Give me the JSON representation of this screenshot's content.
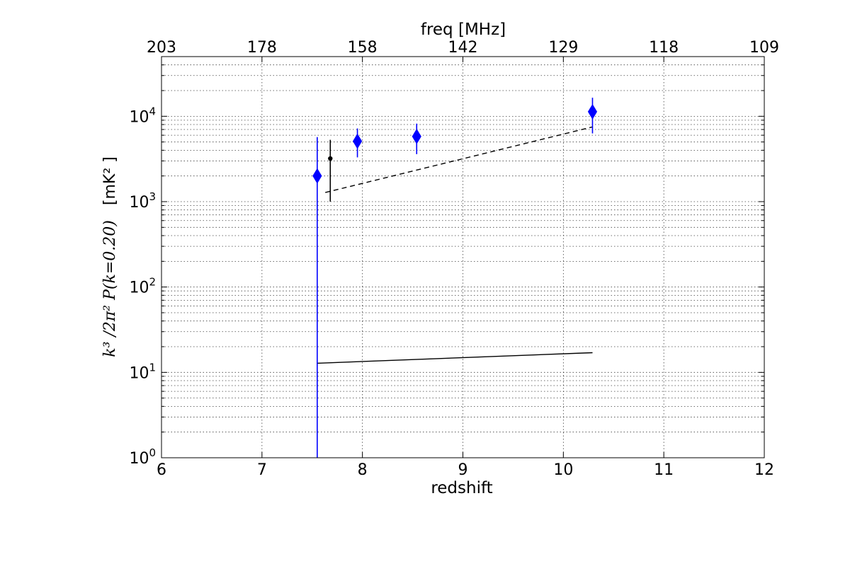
{
  "chart_data": {
    "type": "scatter",
    "xlabel": "redshift",
    "top_xlabel": "freq [MHz]",
    "ylabel_math": "k³ /2π² P(k=0.20)",
    "ylabel_unit": "[mK² ]",
    "xlim": [
      6,
      12
    ],
    "ylim": [
      1,
      50000
    ],
    "yscale": "log",
    "grid": true,
    "x_ticks": [
      "6",
      "7",
      "8",
      "9",
      "10",
      "11",
      "12"
    ],
    "top_ticks": [
      {
        "z": 6,
        "label": "203"
      },
      {
        "z": 7,
        "label": "178"
      },
      {
        "z": 8,
        "label": "158"
      },
      {
        "z": 9,
        "label": "142"
      },
      {
        "z": 10,
        "label": "129"
      },
      {
        "z": 11,
        "label": "118"
      },
      {
        "z": 12,
        "label": "109"
      }
    ],
    "y_ticks": [
      {
        "value": 1,
        "base": "10",
        "exp": "0"
      },
      {
        "value": 10,
        "base": "10",
        "exp": "1"
      },
      {
        "value": 100,
        "base": "10",
        "exp": "2"
      },
      {
        "value": 1000,
        "base": "10",
        "exp": "3"
      },
      {
        "value": 10000,
        "base": "10",
        "exp": "4"
      }
    ],
    "series": [
      {
        "marker": "diamond",
        "color": "#0000ff",
        "points": [
          {
            "x": 7.55,
            "y": 2000,
            "ylow": 1,
            "yhigh": 5700
          },
          {
            "x": 7.95,
            "y": 5100,
            "ylow": 3300,
            "yhigh": 7200
          },
          {
            "x": 8.54,
            "y": 5800,
            "ylow": 3600,
            "yhigh": 8200
          },
          {
            "x": 10.29,
            "y": 11300,
            "ylow": 6300,
            "yhigh": 16500
          }
        ]
      },
      {
        "marker": "dot",
        "color": "#000000",
        "points": [
          {
            "x": 7.68,
            "y": 3200,
            "ylow": 1000,
            "yhigh": 5300
          }
        ]
      }
    ],
    "lines": [
      {
        "style": "dashed",
        "color": "#000000",
        "points": [
          [
            7.63,
            1280
          ],
          [
            10.29,
            7500
          ]
        ]
      },
      {
        "style": "solid",
        "color": "#000000",
        "points": [
          [
            7.55,
            12.8
          ],
          [
            10.29,
            17
          ]
        ]
      }
    ]
  }
}
